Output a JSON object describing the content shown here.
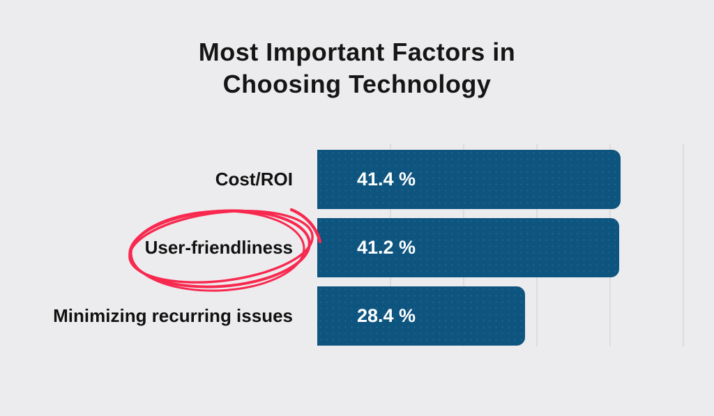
{
  "page": {
    "background_color": "#ECECEE"
  },
  "chart_data": {
    "type": "bar",
    "orientation": "horizontal",
    "title": "Most Important Factors in Choosing Technology",
    "title_lines": [
      "Most Important Factors in",
      "Choosing Technology"
    ],
    "categories": [
      "Cost/ROI",
      "User-friendliness",
      "Minimizing recurring issues"
    ],
    "values": [
      41.4,
      41.2,
      28.4
    ],
    "value_labels": [
      "41.4 %",
      "41.2 %",
      "28.4 %"
    ],
    "xlabel": "",
    "ylabel": "",
    "xlim": [
      0,
      50
    ],
    "gridline_step": 10,
    "grid": true,
    "legend": false,
    "bar_color": "#0D547F",
    "bar_value_text_color": "#FFFFFF",
    "category_label_color": "#111111",
    "grid_color": "#DCDCDE",
    "annotation": {
      "shape": "hand-drawn-ellipse",
      "target_category": "User-friendliness",
      "color": "#F8294F"
    }
  }
}
